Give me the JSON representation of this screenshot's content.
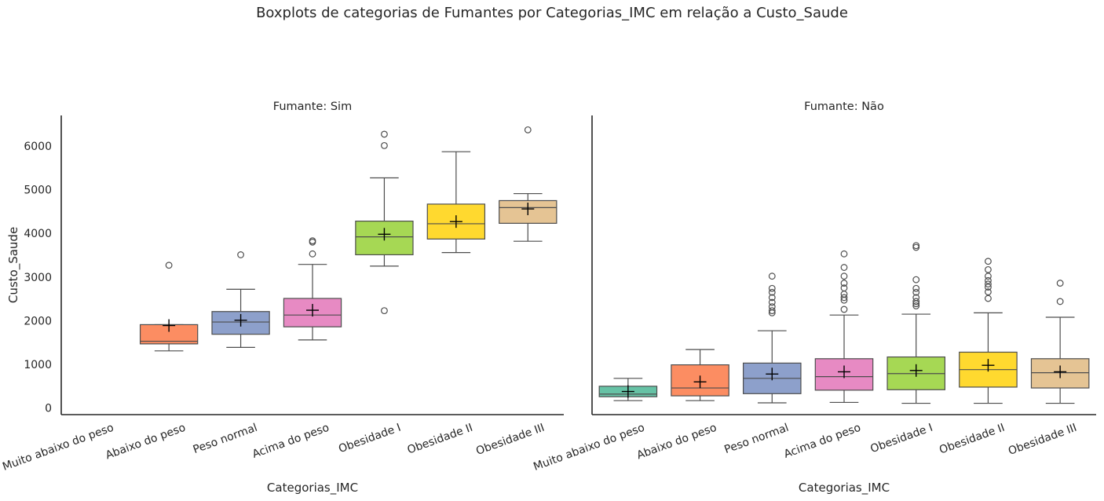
{
  "figure": {
    "title": "Boxplots de categorias de Fumantes por Categorias_IMC em relação a Custo_Saude"
  },
  "chart_data": [
    {
      "type": "box",
      "title": "Fumante: Sim",
      "xlabel": "Categorias_IMC",
      "ylabel": "Custo_Saude",
      "ylim": [
        -150,
        6700
      ],
      "yticks": [
        0,
        1000,
        2000,
        3000,
        4000,
        5000,
        6000
      ],
      "categories": [
        "Muito abaixo do peso",
        "Abaixo do peso",
        "Peso normal",
        "Acima do peso",
        "Obesidade I",
        "Obesidade II",
        "Obesidade III"
      ],
      "colors": [
        "#66c2a5",
        "#fc8d62",
        "#8da0cb",
        "#e78ac3",
        "#a6d854",
        "#ffd92f",
        "#e5c494"
      ],
      "boxes": [
        null,
        {
          "whislo": 1310,
          "q1": 1470,
          "med": 1530,
          "q3": 1910,
          "whishi": 1910,
          "mean": 1890,
          "fliers": [
            3270
          ]
        },
        {
          "whislo": 1390,
          "q1": 1690,
          "med": 1970,
          "q3": 2210,
          "whishi": 2720,
          "mean": 2010,
          "fliers": [
            3510
          ]
        },
        {
          "whislo": 1560,
          "q1": 1860,
          "med": 2130,
          "q3": 2510,
          "whishi": 3290,
          "mean": 2240,
          "fliers": [
            3530,
            3800,
            3830
          ]
        },
        {
          "whislo": 3250,
          "q1": 3510,
          "med": 3920,
          "q3": 4280,
          "whishi": 5270,
          "mean": 3980,
          "fliers": [
            2230,
            6010,
            6270
          ]
        },
        {
          "whislo": 3560,
          "q1": 3870,
          "med": 4220,
          "q3": 4670,
          "whishi": 5870,
          "mean": 4270,
          "fliers": []
        },
        {
          "whislo": 3820,
          "q1": 4230,
          "med": 4590,
          "q3": 4750,
          "whishi": 4910,
          "mean": 4560,
          "fliers": [
            6370
          ]
        }
      ]
    },
    {
      "type": "box",
      "title": "Fumante: Não",
      "xlabel": "Categorias_IMC",
      "ylabel": "",
      "ylim": [
        -150,
        6700
      ],
      "categories": [
        "Muito abaixo do peso",
        "Abaixo do peso",
        "Peso normal",
        "Acima do peso",
        "Obesidade I",
        "Obesidade II",
        "Obesidade III"
      ],
      "colors": [
        "#66c2a5",
        "#fc8d62",
        "#8da0cb",
        "#e78ac3",
        "#a6d854",
        "#ffd92f",
        "#e5c494"
      ],
      "boxes": [
        {
          "whislo": 170,
          "q1": 260,
          "med": 320,
          "q3": 500,
          "whishi": 680,
          "mean": 380,
          "fliers": []
        },
        {
          "whislo": 170,
          "q1": 280,
          "med": 460,
          "q3": 990,
          "whishi": 1340,
          "mean": 600,
          "fliers": []
        },
        {
          "whislo": 120,
          "q1": 330,
          "med": 680,
          "q3": 1030,
          "whishi": 1770,
          "mean": 780,
          "fliers": [
            2180,
            2230,
            2320,
            2420,
            2530,
            2650,
            2740,
            3020
          ]
        },
        {
          "whislo": 130,
          "q1": 410,
          "med": 720,
          "q3": 1130,
          "whishi": 2130,
          "mean": 830,
          "fliers": [
            2260,
            2470,
            2530,
            2610,
            2750,
            2860,
            3020,
            3220,
            3530
          ]
        },
        {
          "whislo": 110,
          "q1": 420,
          "med": 790,
          "q3": 1170,
          "whishi": 2150,
          "mean": 860,
          "fliers": [
            2340,
            2390,
            2440,
            2530,
            2650,
            2740,
            2940,
            3680,
            3720
          ]
        },
        {
          "whislo": 110,
          "q1": 480,
          "med": 880,
          "q3": 1280,
          "whishi": 2180,
          "mean": 980,
          "fliers": [
            2510,
            2660,
            2770,
            2840,
            2920,
            3020,
            3170,
            3360
          ]
        },
        {
          "whislo": 110,
          "q1": 460,
          "med": 810,
          "q3": 1130,
          "whishi": 2080,
          "mean": 830,
          "fliers": [
            2440,
            2860
          ]
        }
      ]
    }
  ]
}
